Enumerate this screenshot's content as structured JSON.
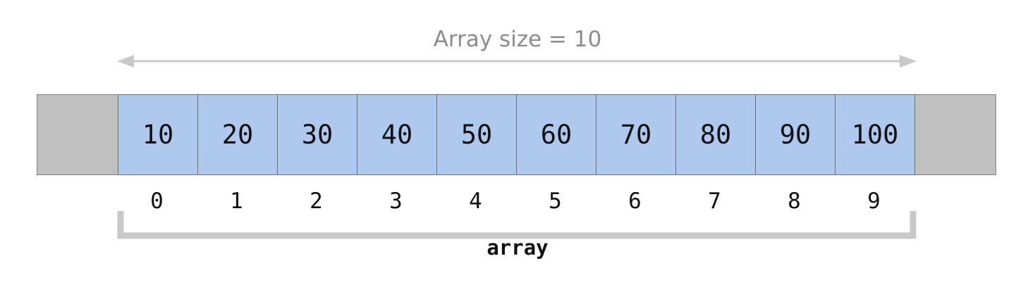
{
  "size_label": "Array size = 10",
  "array_name": "array",
  "cells": [
    "10",
    "20",
    "30",
    "40",
    "50",
    "60",
    "70",
    "80",
    "90",
    "100"
  ],
  "indices": [
    "0",
    "1",
    "2",
    "3",
    "4",
    "5",
    "6",
    "7",
    "8",
    "9"
  ],
  "colors": {
    "cell_fill": "#afc8ee",
    "padding_fill": "#c0c0c0",
    "arrow": "#c8c8c8",
    "bracket": "#c8c8c8",
    "label": "#8c8c8c"
  }
}
